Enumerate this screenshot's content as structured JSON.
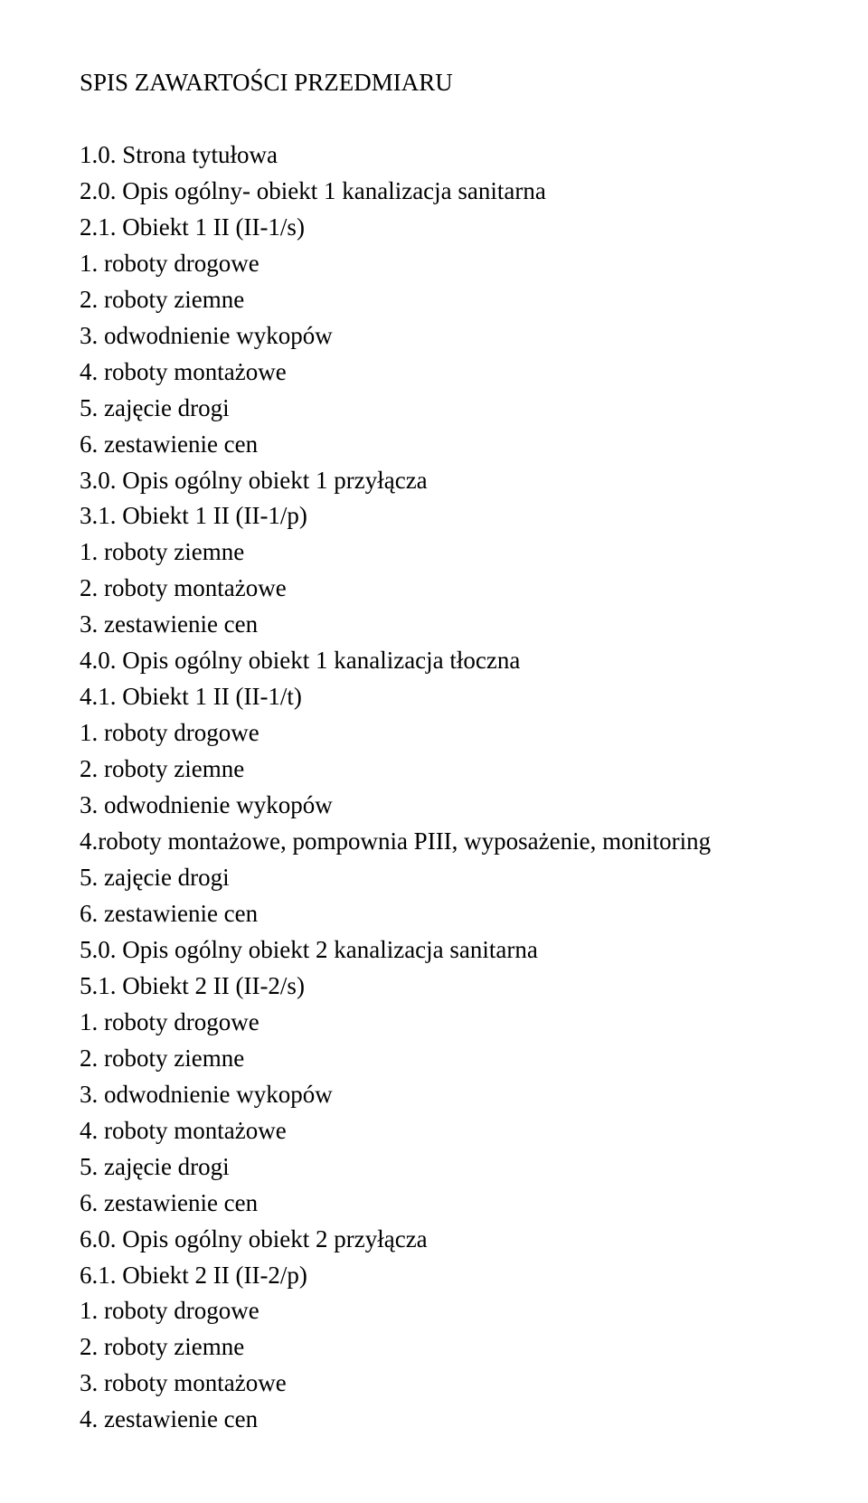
{
  "title": "SPIS ZAWARTOŚCI PRZEDMIARU",
  "lines": [
    "1.0. Strona tytułowa",
    "2.0. Opis ogólny- obiekt 1 kanalizacja sanitarna",
    "2.1. Obiekt 1 II (II-1/s)",
    "1. roboty drogowe",
    "2. roboty ziemne",
    "3. odwodnienie wykopów",
    "4. roboty montażowe",
    "5. zajęcie drogi",
    "6. zestawienie cen",
    "3.0. Opis ogólny obiekt 1 przyłącza",
    "3.1. Obiekt 1 II (II-1/p)",
    "1. roboty ziemne",
    "2. roboty montażowe",
    "3. zestawienie cen",
    "4.0. Opis ogólny obiekt 1 kanalizacja tłoczna",
    "4.1. Obiekt 1 II (II-1/t)",
    "1. roboty drogowe",
    "2. roboty ziemne",
    "3. odwodnienie wykopów",
    "4.roboty montażowe, pompownia PIII, wyposażenie, monitoring",
    "5. zajęcie drogi",
    "6. zestawienie cen",
    "5.0. Opis ogólny obiekt 2 kanalizacja sanitarna",
    "5.1. Obiekt 2 II (II-2/s)",
    "1. roboty drogowe",
    "2. roboty ziemne",
    "3. odwodnienie wykopów",
    "4. roboty montażowe",
    "5. zajęcie drogi",
    "6. zestawienie cen",
    "6.0. Opis ogólny obiekt 2 przyłącza",
    "6.1. Obiekt 2 II (II-2/p)",
    "1. roboty drogowe",
    "2. roboty ziemne",
    "3. roboty montażowe",
    "4. zestawienie cen"
  ]
}
